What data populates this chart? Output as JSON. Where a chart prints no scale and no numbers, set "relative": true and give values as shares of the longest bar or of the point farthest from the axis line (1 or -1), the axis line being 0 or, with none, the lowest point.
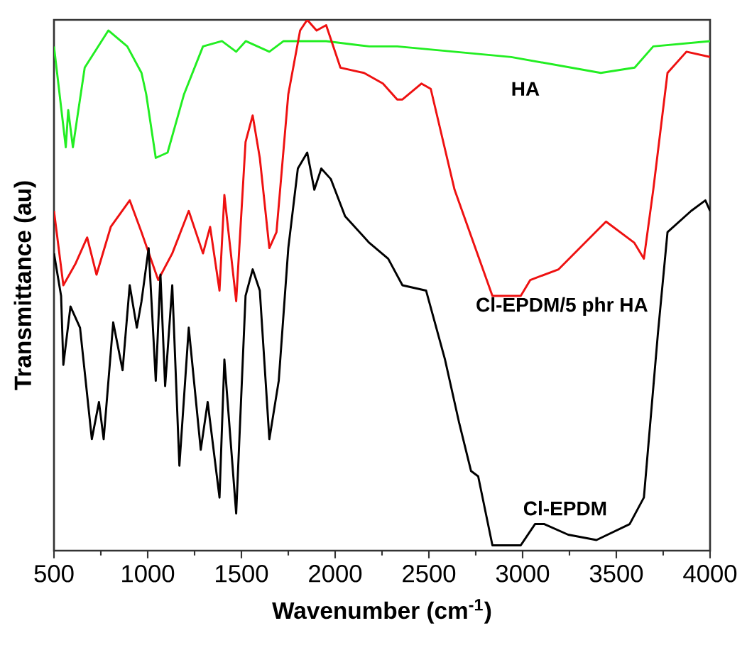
{
  "chart_data": {
    "type": "line",
    "relative": true,
    "xlabel": "Wavenumber (cm$^{-1}$)",
    "ylabel": "Transmittance (au)",
    "xlim": [
      500,
      4000
    ],
    "xticks": [
      500,
      1000,
      1500,
      2000,
      2500,
      3000,
      3500,
      4000
    ],
    "grid": false,
    "marker": "none",
    "line_style": "solid",
    "series": [
      {
        "name": "HA",
        "color": "#22ee22",
        "x": [
          500,
          563,
          576,
          601,
          626,
          664,
          790,
          891,
          967,
          992,
          1043,
          1106,
          1194,
          1295,
          1396,
          1472,
          1523,
          1649,
          1725,
          1952,
          2182,
          2331,
          2939,
          3417,
          3598,
          3697,
          4000
        ],
        "values": [
          0.95,
          0.76,
          0.83,
          0.76,
          0.82,
          0.91,
          0.98,
          0.95,
          0.9,
          0.86,
          0.74,
          0.75,
          0.86,
          0.95,
          0.96,
          0.94,
          0.96,
          0.94,
          0.96,
          0.96,
          0.95,
          0.95,
          0.93,
          0.9,
          0.91,
          0.95,
          0.96
        ]
      },
      {
        "name": "Cl-EPDM/5 phr HA",
        "color": "#ee1111",
        "x": [
          500,
          550,
          614,
          677,
          727,
          803,
          904,
          967,
          1056,
          1131,
          1219,
          1295,
          1333,
          1383,
          1409,
          1472,
          1522,
          1560,
          1598,
          1649,
          1687,
          1750,
          1813,
          1851,
          1901,
          1952,
          2028,
          2154,
          2255,
          2331,
          2359,
          2460,
          2510,
          2637,
          2738,
          2839,
          2990,
          3041,
          3192,
          3445,
          3596,
          3647,
          3697,
          3773,
          3874,
          4000
        ],
        "values": [
          0.64,
          0.5,
          0.54,
          0.59,
          0.52,
          0.61,
          0.66,
          0.6,
          0.51,
          0.56,
          0.64,
          0.56,
          0.61,
          0.49,
          0.67,
          0.47,
          0.77,
          0.82,
          0.74,
          0.57,
          0.6,
          0.86,
          0.98,
          1.0,
          0.98,
          0.99,
          0.91,
          0.9,
          0.88,
          0.85,
          0.85,
          0.88,
          0.87,
          0.68,
          0.58,
          0.48,
          0.48,
          0.51,
          0.53,
          0.62,
          0.58,
          0.55,
          0.68,
          0.9,
          0.94,
          0.93
        ]
      },
      {
        "name": "Cl-EPDM",
        "color": "#000000",
        "x": [
          500,
          538,
          550,
          588,
          639,
          702,
          740,
          765,
          816,
          866,
          904,
          942,
          967,
          1005,
          1043,
          1068,
          1093,
          1131,
          1169,
          1219,
          1283,
          1320,
          1383,
          1409,
          1472,
          1522,
          1560,
          1598,
          1649,
          1699,
          1750,
          1801,
          1851,
          1889,
          1926,
          1977,
          2053,
          2182,
          2283,
          2359,
          2485,
          2586,
          2662,
          2725,
          2763,
          2839,
          2990,
          3066,
          3116,
          3243,
          3394,
          3571,
          3647,
          3722,
          3773,
          3899,
          3975,
          4000
        ],
        "values": [
          0.56,
          0.48,
          0.35,
          0.46,
          0.42,
          0.21,
          0.28,
          0.21,
          0.43,
          0.34,
          0.5,
          0.42,
          0.47,
          0.57,
          0.32,
          0.52,
          0.31,
          0.5,
          0.16,
          0.42,
          0.19,
          0.28,
          0.1,
          0.36,
          0.07,
          0.48,
          0.53,
          0.49,
          0.21,
          0.32,
          0.57,
          0.72,
          0.75,
          0.68,
          0.72,
          0.7,
          0.63,
          0.58,
          0.55,
          0.5,
          0.49,
          0.36,
          0.24,
          0.15,
          0.14,
          0.01,
          0.01,
          0.05,
          0.05,
          0.03,
          0.02,
          0.05,
          0.1,
          0.41,
          0.6,
          0.64,
          0.66,
          0.64
        ]
      }
    ]
  }
}
